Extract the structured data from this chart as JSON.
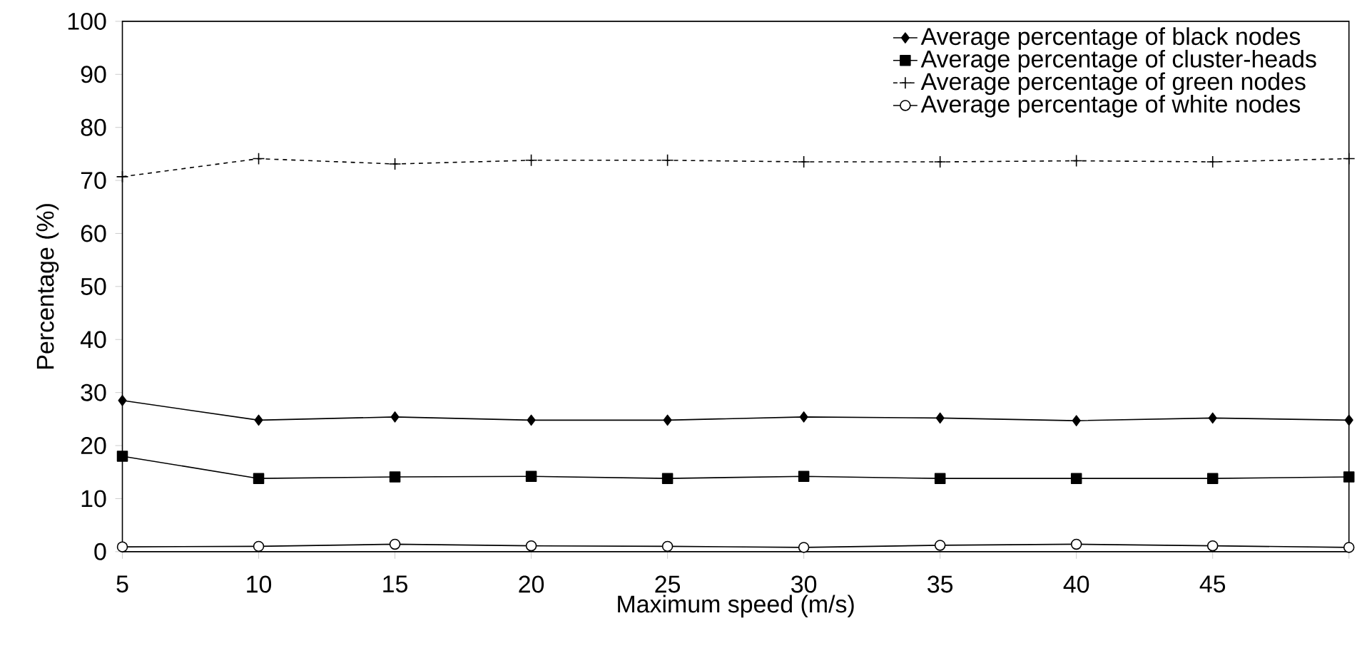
{
  "chart_data": {
    "type": "line",
    "xlabel": "Maximum speed (m/s)",
    "ylabel": "Percentage (%)",
    "x": [
      5,
      10,
      15,
      20,
      25,
      30,
      35,
      40,
      45,
      50
    ],
    "xlim": [
      5,
      50
    ],
    "xticks": [
      5,
      10,
      15,
      20,
      25,
      30,
      35,
      40,
      45,
      {
        "value": 50,
        "label": null
      }
    ],
    "ylim": [
      0,
      100
    ],
    "yticks": [
      0,
      10,
      20,
      30,
      40,
      50,
      60,
      70,
      80,
      90,
      100
    ],
    "grid": false,
    "legend": "top right",
    "series": [
      {
        "name": "Average percentage of black nodes",
        "color": "#000000",
        "marker": "diamond",
        "line_style": "solid",
        "values": [
          28.5,
          24.8,
          25.4,
          24.8,
          24.8,
          25.4,
          25.2,
          24.7,
          25.2,
          24.8
        ]
      },
      {
        "name": "Average percentage of cluster-heads",
        "color": "#000000",
        "marker": "square",
        "line_style": "solid",
        "values": [
          18.0,
          13.8,
          14.1,
          14.2,
          13.8,
          14.2,
          13.8,
          13.8,
          13.8,
          14.1
        ]
      },
      {
        "name": "Average percentage of green nodes",
        "color": "#000000",
        "marker": "cross",
        "line_style": "dashed",
        "values": [
          70.7,
          74.1,
          73.1,
          73.8,
          73.8,
          73.5,
          73.5,
          73.7,
          73.5,
          74.1
        ]
      },
      {
        "name": "Average percentage of white nodes",
        "color": "#000000",
        "marker": "circle",
        "line_style": "solid",
        "values": [
          0.9,
          1.0,
          1.4,
          1.1,
          1.0,
          0.8,
          1.2,
          1.4,
          1.1,
          0.8
        ]
      }
    ]
  }
}
